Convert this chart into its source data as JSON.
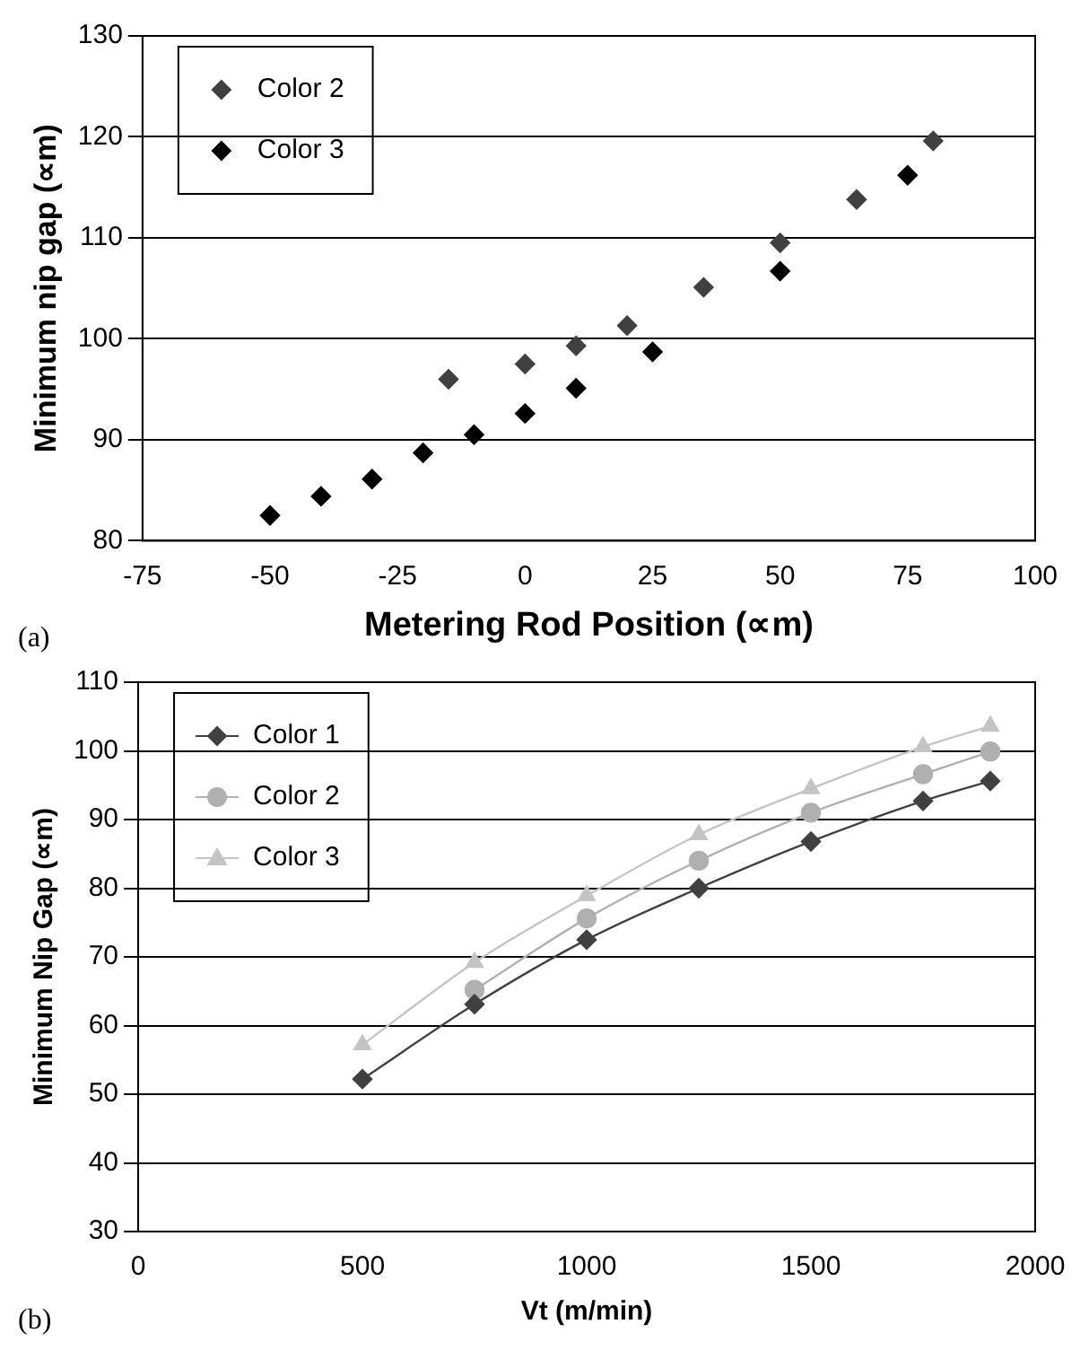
{
  "chart_data": [
    {
      "type": "scatter",
      "xlabel": "Metering Rod Position (∝m)",
      "ylabel": "Minimum nip gap (∝m)",
      "annotations": [
        "(a)"
      ],
      "xlim": [
        -75,
        100
      ],
      "xticks": [
        -75,
        -50,
        -25,
        0,
        25,
        50,
        75,
        100
      ],
      "ylim": [
        80,
        130
      ],
      "yticks": [
        80,
        90,
        100,
        110,
        120,
        130
      ],
      "grid": "y",
      "legend": "top left",
      "marker": "diamond",
      "series": [
        {
          "name": "Color 2",
          "color": "#404040",
          "x": [
            -15,
            0,
            10,
            20,
            35,
            50,
            65,
            80
          ],
          "values": [
            96,
            97.5,
            99.3,
            101.3,
            105.1,
            109.5,
            113.8,
            119.6
          ]
        },
        {
          "name": "Color 3",
          "color": "#000000",
          "x": [
            -50,
            -40,
            -30,
            -20,
            -10,
            0,
            10,
            25,
            50,
            75
          ],
          "values": [
            82.5,
            84.4,
            86.1,
            88.7,
            90.5,
            92.6,
            95.1,
            98.7,
            106.7,
            116.2
          ]
        }
      ]
    },
    {
      "type": "line",
      "xlabel": "Vt (m/min)",
      "ylabel": "Minimum Nip Gap (∝m)",
      "annotations": [
        "(b)"
      ],
      "x": [
        500,
        750,
        1000,
        1250,
        1500,
        1750,
        1900
      ],
      "xlim": [
        0,
        2000
      ],
      "xticks": [
        0,
        500,
        1000,
        1500,
        2000
      ],
      "ylim": [
        30,
        110
      ],
      "yticks": [
        30,
        40,
        50,
        60,
        70,
        80,
        90,
        100,
        110
      ],
      "grid": "y",
      "legend": "top left",
      "series": [
        {
          "name": "Color 1",
          "color": "#404040",
          "marker": "diamond",
          "values": [
            52.2,
            63.1,
            72.5,
            80,
            86.8,
            92.7,
            95.6
          ]
        },
        {
          "name": "Color 2",
          "color": "#b0b0b0",
          "marker": "circle",
          "values": [
            null,
            65.2,
            75.6,
            84,
            91,
            96.6,
            99.9
          ]
        },
        {
          "name": "Color 3",
          "color": "#c4c4c4",
          "marker": "triangle",
          "values": [
            57.2,
            69.2,
            78.9,
            87.8,
            94.5,
            100.6,
            103.6
          ]
        }
      ]
    }
  ]
}
